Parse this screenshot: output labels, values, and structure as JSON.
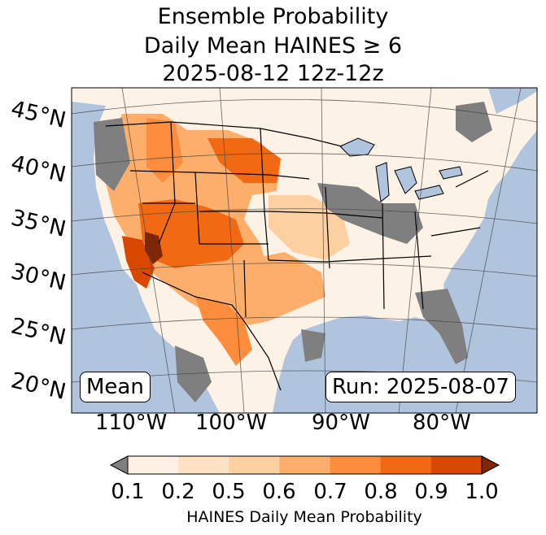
{
  "title": {
    "line1": "Ensemble Probability",
    "line2": "Daily Mean HAINES ≥ 6",
    "line3": "2025-08-12 12z-12z"
  },
  "map": {
    "lat_labels": [
      "45°N",
      "40°N",
      "35°N",
      "30°N",
      "25°N",
      "20°N"
    ],
    "lon_labels": [
      "110°W",
      "100°W",
      "90°W",
      "80°W"
    ],
    "stat_box": "Mean",
    "run_box": "Run: 2025-08-07",
    "colors": {
      "ocean": "#b0c4de",
      "land_low": "#fdf2e6",
      "missing_gray": "#7f7f7f",
      "high": "#d94801"
    }
  },
  "colorbar": {
    "ticks": [
      "0.1",
      "0.2",
      "0.5",
      "0.6",
      "0.7",
      "0.8",
      "0.9",
      "1.0"
    ],
    "colors": [
      "#fef0e2",
      "#fee2c4",
      "#fdd0a2",
      "#fdae6b",
      "#fd8d3c",
      "#f16913",
      "#d94801",
      "#7f2704"
    ],
    "under_color": "#7f7f7f",
    "over_color": "#7f2704",
    "label": "HAINES Daily Mean Probability"
  }
}
